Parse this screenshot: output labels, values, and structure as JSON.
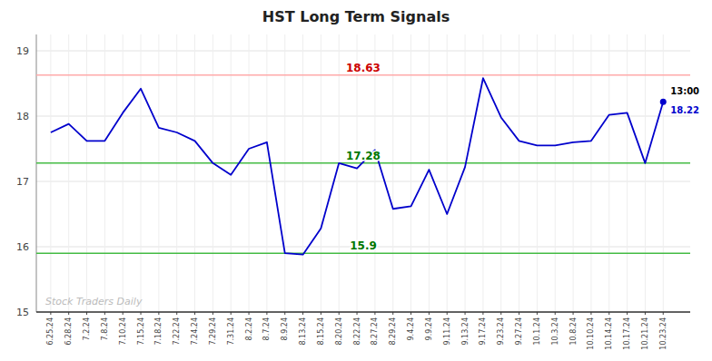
{
  "chart_data": {
    "type": "line",
    "title": "HST Long Term Signals",
    "categories": [
      "6.25.24",
      "6.28.24",
      "7.2.24",
      "7.8.24",
      "7.10.24",
      "7.15.24",
      "7.18.24",
      "7.22.24",
      "7.24.24",
      "7.29.24",
      "7.31.24",
      "8.2.24",
      "8.7.24",
      "8.9.24",
      "8.13.24",
      "8.15.24",
      "8.20.24",
      "8.22.24",
      "8.27.24",
      "8.29.24",
      "9.4.24",
      "9.9.24",
      "9.11.24",
      "9.13.24",
      "9.17.24",
      "9.23.24",
      "9.27.24",
      "10.1.24",
      "10.3.24",
      "10.8.24",
      "10.10.24",
      "10.14.24",
      "10.17.24",
      "10.21.24",
      "10.23.24"
    ],
    "values": [
      17.75,
      17.88,
      17.62,
      17.62,
      18.05,
      18.42,
      17.82,
      17.75,
      17.62,
      17.28,
      17.1,
      17.5,
      17.6,
      15.9,
      15.88,
      16.28,
      17.28,
      17.2,
      17.48,
      16.58,
      16.62,
      17.18,
      16.5,
      17.22,
      18.58,
      17.98,
      17.62,
      17.55,
      17.55,
      17.6,
      17.62,
      18.02,
      18.05,
      17.28,
      18.22
    ],
    "color": "#0000cc",
    "ylim": [
      15.0,
      19.25
    ],
    "yticks": [
      15,
      16,
      17,
      18,
      19
    ],
    "grid": true,
    "reference_lines": [
      {
        "value": 18.63,
        "label": "18.63",
        "color": "#ffaaaa",
        "label_color": "#cc0000"
      },
      {
        "value": 17.28,
        "label": "17.28",
        "color": "#44bb44",
        "label_color": "#007700"
      },
      {
        "value": 15.9,
        "label": "15.9",
        "color": "#44bb44",
        "label_color": "#007700"
      }
    ],
    "last_point": {
      "time": "13:00",
      "label": "18.22"
    },
    "watermark": "Stock Traders Daily"
  }
}
